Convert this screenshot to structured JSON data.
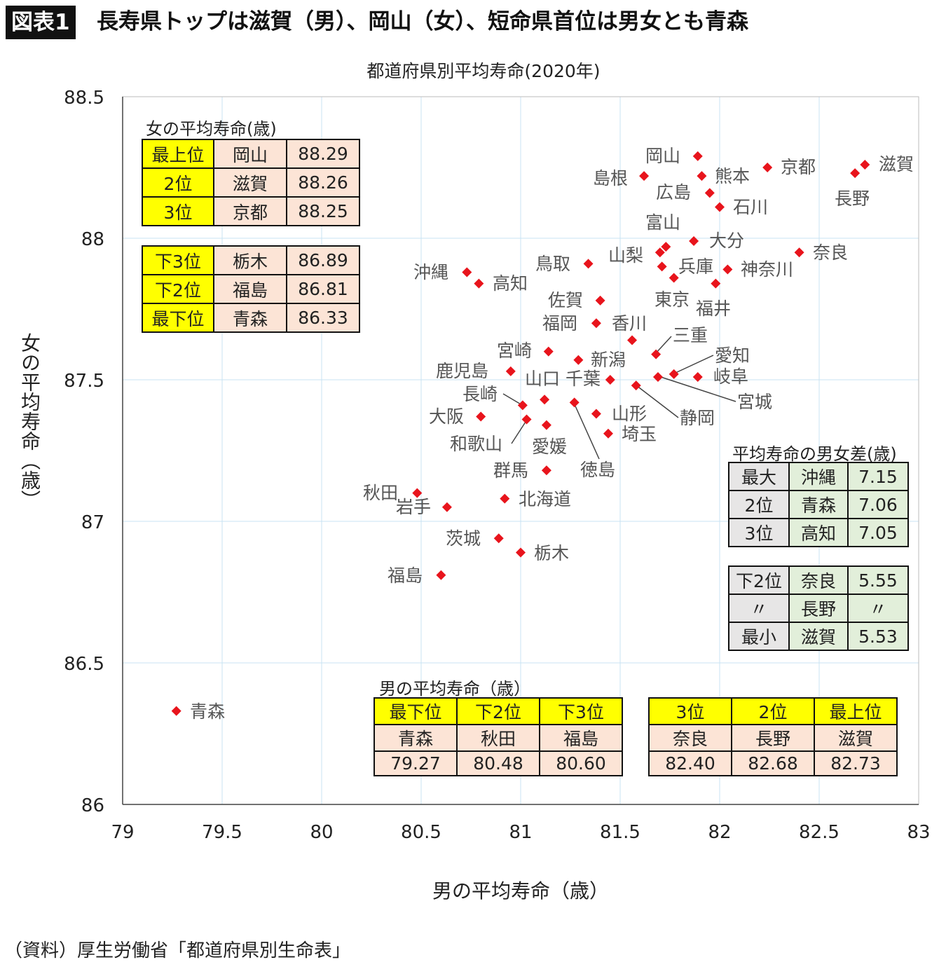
{
  "header": {
    "badge": "図表1",
    "headline": "長寿県トップは滋賀（男）、岡山（女）、短命県首位は男女とも青森"
  },
  "source": "（資料）厚生労働省「都道府県別生命表」",
  "female_table": {
    "title": "女の平均寿命(歳)",
    "top": [
      [
        "最上位",
        "岡山",
        "88.29"
      ],
      [
        "2位",
        "滋賀",
        "88.26"
      ],
      [
        "3位",
        "京都",
        "88.25"
      ]
    ],
    "bottom": [
      [
        "下3位",
        "栃木",
        "86.89"
      ],
      [
        "下2位",
        "福島",
        "86.81"
      ],
      [
        "最下位",
        "青森",
        "86.33"
      ]
    ]
  },
  "male_table": {
    "title": "男の平均寿命（歳）",
    "bottom": {
      "ranks": [
        "最下位",
        "下2位",
        "下3位"
      ],
      "names": [
        "青森",
        "秋田",
        "福島"
      ],
      "values": [
        "79.27",
        "80.48",
        "80.60"
      ]
    },
    "top": {
      "ranks": [
        "3位",
        "2位",
        "最上位"
      ],
      "names": [
        "奈良",
        "長野",
        "滋賀"
      ],
      "values": [
        "82.40",
        "82.68",
        "82.73"
      ]
    }
  },
  "diff_table": {
    "title": "平均寿命の男女差(歳)",
    "top": [
      [
        "最大",
        "沖縄",
        "7.15"
      ],
      [
        "2位",
        "青森",
        "7.06"
      ],
      [
        "3位",
        "高知",
        "7.05"
      ]
    ],
    "bottom": [
      [
        "下2位",
        "奈良",
        "5.55"
      ],
      [
        "〃",
        "長野",
        "〃"
      ],
      [
        "最小",
        "滋賀",
        "5.53"
      ]
    ]
  },
  "colors": {
    "point": "#e8141c",
    "highlight": "#ffff00",
    "peach": "#fce4d6",
    "green": "#e2efda",
    "grid": "#c9e3f3"
  },
  "chart_data": {
    "type": "scatter",
    "title": "都道府県別平均寿命(2020年)",
    "xlabel": "男の平均寿命（歳）",
    "ylabel": "女の平均寿命（歳）",
    "xlim": [
      79,
      83
    ],
    "ylim": [
      86,
      88.5
    ],
    "grid": true,
    "xticks": [
      "79",
      "79.5",
      "80",
      "80.5",
      "81",
      "81.5",
      "82",
      "82.5",
      "83"
    ],
    "yticks": [
      "86",
      "86.5",
      "87",
      "87.5",
      "88",
      "88.5"
    ],
    "points": [
      {
        "name": "青森",
        "x": 79.27,
        "y": 86.33
      },
      {
        "name": "秋田",
        "x": 80.48,
        "y": 87.1
      },
      {
        "name": "岩手",
        "x": 80.63,
        "y": 87.05
      },
      {
        "name": "福島",
        "x": 80.6,
        "y": 86.81
      },
      {
        "name": "茨城",
        "x": 80.89,
        "y": 86.94
      },
      {
        "name": "栃木",
        "x": 81.0,
        "y": 86.89
      },
      {
        "name": "北海道",
        "x": 80.92,
        "y": 87.08
      },
      {
        "name": "群馬",
        "x": 81.13,
        "y": 87.18
      },
      {
        "name": "大阪",
        "x": 80.8,
        "y": 87.37
      },
      {
        "name": "長崎",
        "x": 81.01,
        "y": 87.41
      },
      {
        "name": "和歌山",
        "x": 81.03,
        "y": 87.36
      },
      {
        "name": "愛媛",
        "x": 81.13,
        "y": 87.34
      },
      {
        "name": "山口",
        "x": 81.12,
        "y": 87.43
      },
      {
        "name": "千葉",
        "x": 81.45,
        "y": 87.5
      },
      {
        "name": "徳島",
        "x": 81.27,
        "y": 87.42
      },
      {
        "name": "山形",
        "x": 81.38,
        "y": 87.38
      },
      {
        "name": "埼玉",
        "x": 81.44,
        "y": 87.31
      },
      {
        "name": "鹿児島",
        "x": 80.95,
        "y": 87.53
      },
      {
        "name": "宮崎",
        "x": 81.14,
        "y": 87.6
      },
      {
        "name": "新潟",
        "x": 81.29,
        "y": 87.57
      },
      {
        "name": "香川",
        "x": 81.56,
        "y": 87.64
      },
      {
        "name": "福岡",
        "x": 81.38,
        "y": 87.7
      },
      {
        "name": "佐賀",
        "x": 81.4,
        "y": 87.78
      },
      {
        "name": "鳥取",
        "x": 81.34,
        "y": 87.91
      },
      {
        "name": "沖縄",
        "x": 80.73,
        "y": 87.88
      },
      {
        "name": "高知",
        "x": 80.79,
        "y": 87.84
      },
      {
        "name": "三重",
        "x": 81.68,
        "y": 87.59
      },
      {
        "name": "愛知",
        "x": 81.77,
        "y": 87.52
      },
      {
        "name": "静岡",
        "x": 81.58,
        "y": 87.48
      },
      {
        "name": "宮城",
        "x": 81.69,
        "y": 87.51
      },
      {
        "name": "岐阜",
        "x": 81.89,
        "y": 87.51
      },
      {
        "name": "東京",
        "x": 81.77,
        "y": 87.86
      },
      {
        "name": "福井",
        "x": 81.98,
        "y": 87.84
      },
      {
        "name": "兵庫",
        "x": 81.71,
        "y": 87.9
      },
      {
        "name": "山梨",
        "x": 81.7,
        "y": 87.95
      },
      {
        "name": "富山",
        "x": 81.73,
        "y": 87.97
      },
      {
        "name": "大分",
        "x": 81.87,
        "y": 87.99
      },
      {
        "name": "神奈川",
        "x": 82.04,
        "y": 87.89
      },
      {
        "name": "奈良",
        "x": 82.4,
        "y": 87.95
      },
      {
        "name": "京都",
        "x": 82.24,
        "y": 88.25
      },
      {
        "name": "滋賀",
        "x": 82.73,
        "y": 88.26
      },
      {
        "name": "長野",
        "x": 82.68,
        "y": 88.23
      },
      {
        "name": "岡山",
        "x": 81.89,
        "y": 88.29
      },
      {
        "name": "熊本",
        "x": 81.91,
        "y": 88.22
      },
      {
        "name": "島根",
        "x": 81.62,
        "y": 88.22
      },
      {
        "name": "広島",
        "x": 81.95,
        "y": 88.16
      },
      {
        "name": "石川",
        "x": 82.0,
        "y": 88.11
      }
    ]
  }
}
